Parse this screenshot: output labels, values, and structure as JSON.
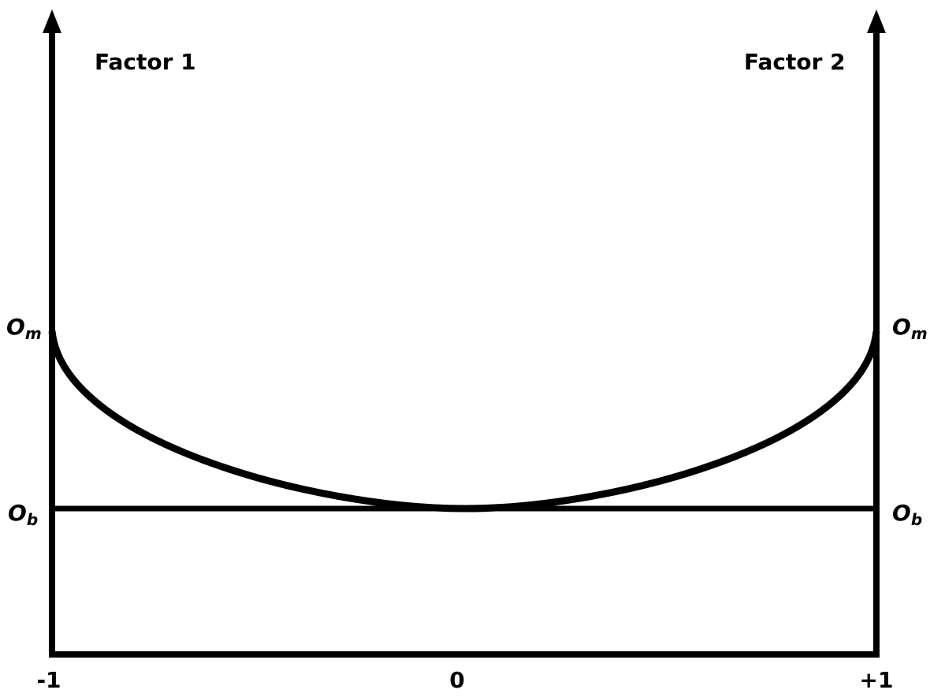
{
  "factors": {
    "left": "Factor 1",
    "right": "Factor 2"
  },
  "levels": {
    "upper": {
      "letter": "O",
      "subscript": "m"
    },
    "lower": {
      "letter": "O",
      "subscript": "b"
    }
  },
  "x_labels": [
    "-1",
    "0",
    "+1"
  ]
}
